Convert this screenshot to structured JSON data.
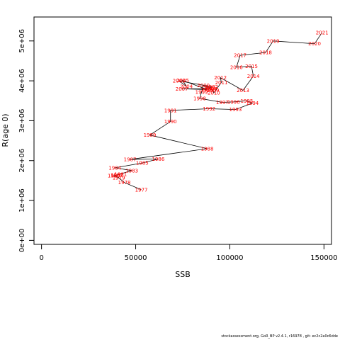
{
  "chart_data": {
    "type": "line",
    "xlabel": "SSB",
    "ylabel": "R(age 0)",
    "xlim": [
      -4000,
      154000
    ],
    "ylim": [
      -100000,
      5600000
    ],
    "x_ticks": [
      0,
      50000,
      100000,
      150000
    ],
    "x_tick_labels": [
      "0",
      "50000",
      "100000",
      "150000"
    ],
    "y_ticks": [
      0,
      1000000,
      2000000,
      3000000,
      4000000,
      5000000
    ],
    "y_tick_labels": [
      "0e+00",
      "1e+06",
      "2e+06",
      "3e+06",
      "4e+06",
      "5e+06"
    ],
    "grid": false,
    "points": [
      {
        "year": "1977",
        "x": 53000,
        "y": 1270000
      },
      {
        "year": "1978",
        "x": 44000,
        "y": 1450000
      },
      {
        "year": "1979",
        "x": 41000,
        "y": 1570000
      },
      {
        "year": "1980",
        "x": 38500,
        "y": 1620000
      },
      {
        "year": "1981",
        "x": 42000,
        "y": 1660000
      },
      {
        "year": "1982",
        "x": 40000,
        "y": 1640000
      },
      {
        "year": "1983",
        "x": 48000,
        "y": 1750000
      },
      {
        "year": "1984",
        "x": 39000,
        "y": 1820000
      },
      {
        "year": "1985",
        "x": 53500,
        "y": 1940000
      },
      {
        "year": "1986",
        "x": 62000,
        "y": 2040000
      },
      {
        "year": "1987",
        "x": 47000,
        "y": 2030000
      },
      {
        "year": "1988",
        "x": 88000,
        "y": 2300000
      },
      {
        "year": "1989",
        "x": 57500,
        "y": 2640000
      },
      {
        "year": "1990",
        "x": 68500,
        "y": 2980000
      },
      {
        "year": "1991",
        "x": 68500,
        "y": 3260000
      },
      {
        "year": "1992",
        "x": 89000,
        "y": 3300000
      },
      {
        "year": "1993",
        "x": 103000,
        "y": 3280000
      },
      {
        "year": "1994",
        "x": 112000,
        "y": 3440000
      },
      {
        "year": "1995",
        "x": 109000,
        "y": 3500000
      },
      {
        "year": "1996",
        "x": 102000,
        "y": 3470000
      },
      {
        "year": "1997",
        "x": 96000,
        "y": 3460000
      },
      {
        "year": "1998",
        "x": 84000,
        "y": 3560000
      },
      {
        "year": "1999",
        "x": 85000,
        "y": 3720000
      },
      {
        "year": "2000",
        "x": 86000,
        "y": 3890000
      },
      {
        "year": "2001",
        "x": 89000,
        "y": 3820000
      },
      {
        "year": "2002",
        "x": 90500,
        "y": 3850000
      },
      {
        "year": "2003",
        "x": 73000,
        "y": 4000000
      },
      {
        "year": "2004",
        "x": 77000,
        "y": 3860000
      },
      {
        "year": "2005",
        "x": 75000,
        "y": 4010000
      },
      {
        "year": "2006",
        "x": 88000,
        "y": 3780000
      },
      {
        "year": "2007",
        "x": 74500,
        "y": 3800000
      },
      {
        "year": "2008",
        "x": 90000,
        "y": 3800000
      },
      {
        "year": "2009",
        "x": 91000,
        "y": 3760000
      },
      {
        "year": "2010",
        "x": 91500,
        "y": 3700000
      },
      {
        "year": "2011",
        "x": 95500,
        "y": 3960000
      },
      {
        "year": "2012",
        "x": 95000,
        "y": 4080000
      },
      {
        "year": "2013",
        "x": 107000,
        "y": 3760000
      },
      {
        "year": "2014",
        "x": 112500,
        "y": 4120000
      },
      {
        "year": "2015",
        "x": 111500,
        "y": 4370000
      },
      {
        "year": "2016",
        "x": 103500,
        "y": 4340000
      },
      {
        "year": "2017",
        "x": 105500,
        "y": 4640000
      },
      {
        "year": "2018",
        "x": 119000,
        "y": 4710000
      },
      {
        "year": "2019",
        "x": 123000,
        "y": 5000000
      },
      {
        "year": "2020",
        "x": 145000,
        "y": 4930000
      },
      {
        "year": "2021",
        "x": 149000,
        "y": 5210000
      }
    ]
  },
  "footer": "stockassessment.org,  GoR_BP  v2.4.1, r16978 ,  git:  ec2c2a0c6dde"
}
